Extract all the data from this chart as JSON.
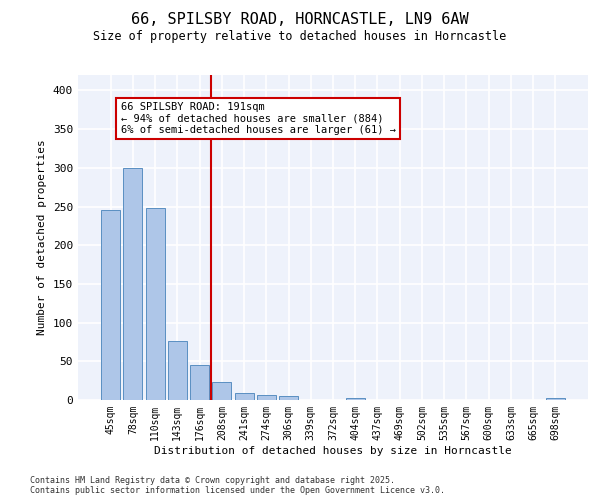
{
  "title_line1": "66, SPILSBY ROAD, HORNCASTLE, LN9 6AW",
  "title_line2": "Size of property relative to detached houses in Horncastle",
  "xlabel": "Distribution of detached houses by size in Horncastle",
  "ylabel": "Number of detached properties",
  "categories": [
    "45sqm",
    "78sqm",
    "110sqm",
    "143sqm",
    "176sqm",
    "208sqm",
    "241sqm",
    "274sqm",
    "306sqm",
    "339sqm",
    "372sqm",
    "404sqm",
    "437sqm",
    "469sqm",
    "502sqm",
    "535sqm",
    "567sqm",
    "600sqm",
    "633sqm",
    "665sqm",
    "698sqm"
  ],
  "values": [
    245,
    300,
    248,
    76,
    45,
    23,
    9,
    6,
    5,
    0,
    0,
    3,
    0,
    0,
    0,
    0,
    0,
    0,
    0,
    0,
    2
  ],
  "bar_color": "#aec6e8",
  "bar_edgecolor": "#5a8fc2",
  "property_line_x": 4.5,
  "annotation_title": "66 SPILSBY ROAD: 191sqm",
  "annotation_line2": "← 94% of detached houses are smaller (884)",
  "annotation_line3": "6% of semi-detached houses are larger (61) →",
  "annotation_box_color": "#cc0000",
  "vline_color": "#cc0000",
  "ylim": [
    0,
    420
  ],
  "yticks": [
    0,
    50,
    100,
    150,
    200,
    250,
    300,
    350,
    400
  ],
  "background_color": "#eef2fb",
  "grid_color": "#ffffff",
  "footer_line1": "Contains HM Land Registry data © Crown copyright and database right 2025.",
  "footer_line2": "Contains public sector information licensed under the Open Government Licence v3.0."
}
